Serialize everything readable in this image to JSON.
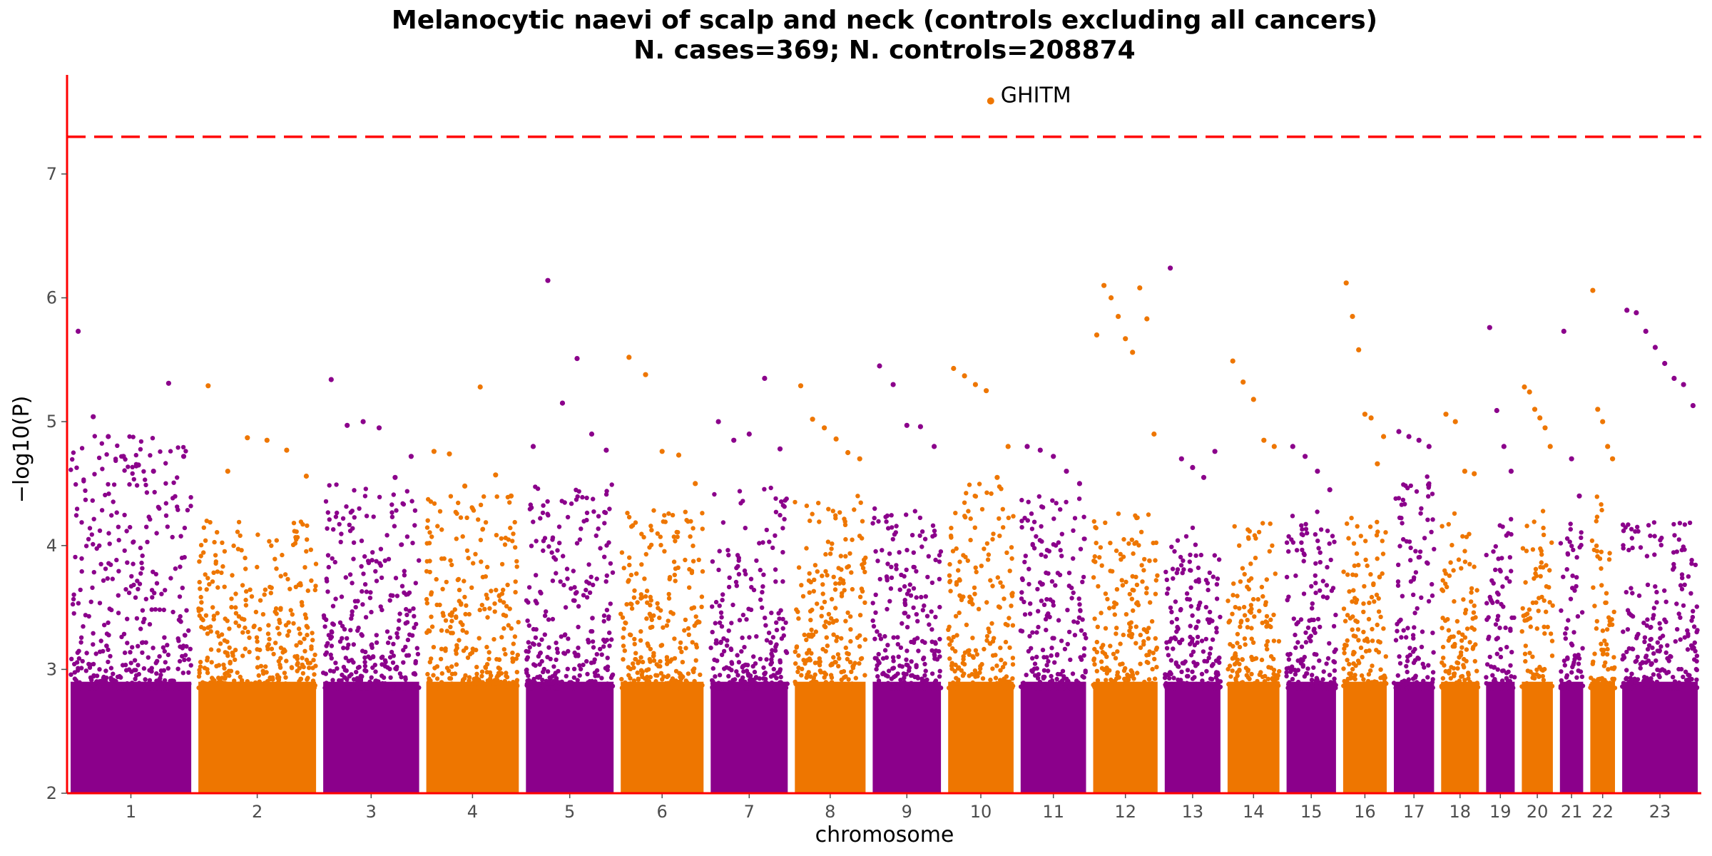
{
  "chart_data": {
    "type": "scatter",
    "title": "Melanocytic naevi of scalp and neck (controls excluding all cancers)",
    "subtitle": "N. cases=369; N. controls=208874",
    "xlabel": "chromosome",
    "ylabel": "−log10(P)",
    "ylim": [
      2,
      7.8
    ],
    "yticks": [
      2,
      3,
      4,
      5,
      6,
      7
    ],
    "grid": false,
    "legend": "none",
    "significance_threshold": 7.3,
    "colors": {
      "odd": "#8b008b",
      "even": "#ee7600",
      "threshold": "#ff0000",
      "axis": "#ff0000"
    },
    "categories": [
      "1",
      "2",
      "3",
      "4",
      "5",
      "6",
      "7",
      "8",
      "9",
      "10",
      "11",
      "12",
      "13",
      "14",
      "15",
      "16",
      "17",
      "18",
      "19",
      "20",
      "21",
      "22",
      "23"
    ],
    "chromosomes": [
      {
        "label": "1",
        "size": 249,
        "peak": 4.9,
        "tops": [
          5.73,
          5.04,
          4.88,
          4.72,
          4.65,
          4.6,
          5.31,
          4.72
        ]
      },
      {
        "label": "2",
        "size": 243,
        "peak": 4.2,
        "tops": [
          5.29,
          4.6,
          4.87,
          4.85,
          4.77,
          4.56
        ]
      },
      {
        "label": "3",
        "size": 198,
        "peak": 4.5,
        "tops": [
          5.34,
          4.97,
          5.0,
          4.95,
          4.55,
          4.72
        ]
      },
      {
        "label": "4",
        "size": 191,
        "peak": 4.4,
        "tops": [
          4.76,
          4.74,
          4.48,
          5.28,
          4.57,
          4.4
        ]
      },
      {
        "label": "5",
        "size": 181,
        "peak": 4.5,
        "tops": [
          4.8,
          6.14,
          5.15,
          5.51,
          4.9,
          4.77
        ]
      },
      {
        "label": "6",
        "size": 171,
        "peak": 4.3,
        "tops": [
          5.52,
          5.38,
          4.76,
          4.73,
          4.5
        ]
      },
      {
        "label": "7",
        "size": 159,
        "peak": 4.5,
        "tops": [
          5.0,
          4.85,
          4.9,
          5.35,
          4.78
        ]
      },
      {
        "label": "8",
        "size": 146,
        "peak": 4.4,
        "tops": [
          5.29,
          5.02,
          4.95,
          4.86,
          4.75,
          4.7
        ]
      },
      {
        "label": "9",
        "size": 141,
        "peak": 4.3,
        "tops": [
          5.45,
          5.3,
          4.97,
          4.96,
          4.8
        ]
      },
      {
        "label": "10",
        "size": 135,
        "peak": 4.5,
        "tops": [
          5.43,
          5.37,
          5.3,
          5.25,
          4.55,
          4.8
        ]
      },
      {
        "label": "11",
        "size": 135,
        "peak": 4.4,
        "tops": [
          4.8,
          4.77,
          4.72,
          4.6,
          4.5
        ]
      },
      {
        "label": "12",
        "size": 133,
        "peak": 4.3,
        "tops": [
          5.7,
          6.1,
          6.0,
          5.85,
          5.67,
          5.56,
          6.08,
          5.83,
          4.9
        ]
      },
      {
        "label": "13",
        "size": 115,
        "peak": 4.2,
        "tops": [
          6.24,
          4.7,
          4.63,
          4.55,
          4.76
        ]
      },
      {
        "label": "14",
        "size": 107,
        "peak": 4.2,
        "tops": [
          5.49,
          5.32,
          5.18,
          4.85,
          4.8
        ]
      },
      {
        "label": "15",
        "size": 102,
        "peak": 4.3,
        "tops": [
          4.8,
          4.72,
          4.6,
          4.45
        ]
      },
      {
        "label": "16",
        "size": 90,
        "peak": 4.3,
        "tops": [
          6.12,
          5.85,
          5.58,
          5.06,
          5.03,
          4.66,
          4.88
        ]
      },
      {
        "label": "17",
        "size": 83,
        "peak": 4.6,
        "tops": [
          4.92,
          4.88,
          4.85,
          4.8
        ]
      },
      {
        "label": "18",
        "size": 78,
        "peak": 4.3,
        "tops": [
          5.06,
          5.0,
          4.6,
          4.58
        ]
      },
      {
        "label": "19",
        "size": 59,
        "peak": 4.3,
        "tops": [
          5.76,
          5.09,
          4.8,
          4.6
        ]
      },
      {
        "label": "20",
        "size": 64,
        "peak": 4.3,
        "tops": [
          5.28,
          5.24,
          5.1,
          5.03,
          4.95,
          4.8
        ]
      },
      {
        "label": "21",
        "size": 48,
        "peak": 4.2,
        "tops": [
          5.73,
          4.7,
          4.4
        ]
      },
      {
        "label": "22",
        "size": 51,
        "peak": 4.4,
        "tops": [
          6.06,
          5.1,
          5.0,
          4.8,
          4.7
        ]
      },
      {
        "label": "23",
        "size": 156,
        "peak": 4.2,
        "tops": [
          5.9,
          5.88,
          5.73,
          5.6,
          5.47,
          5.35,
          5.3,
          5.13
        ]
      }
    ],
    "annotations": [
      {
        "label": "GHITM",
        "chromosome": "10",
        "x_frac": 0.65,
        "y": 7.59
      }
    ]
  }
}
